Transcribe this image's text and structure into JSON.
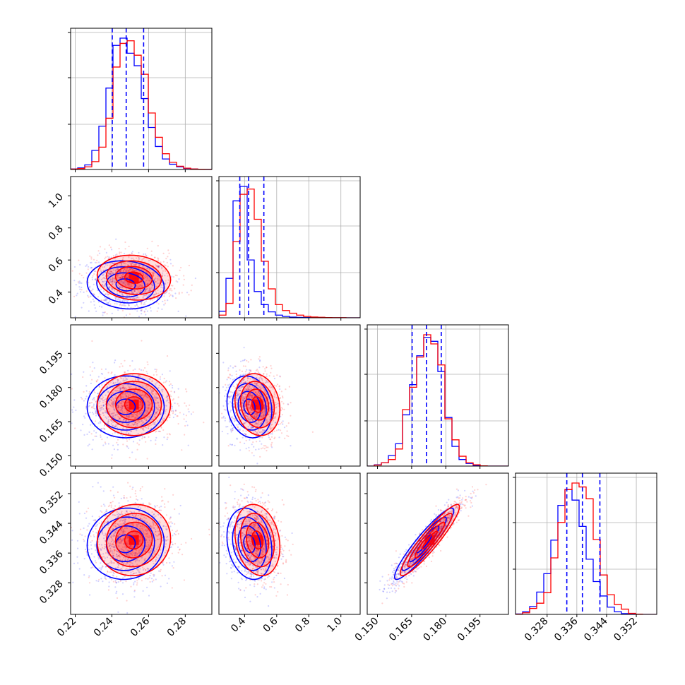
{
  "chart_data": {
    "type": "corner",
    "grid": true,
    "series": [
      {
        "color": "#0000ff"
      },
      {
        "color": "#ff0000"
      }
    ],
    "quantile_lines": {
      "color": "#0000ff",
      "style": "dashed"
    },
    "parameters": [
      {
        "range": [
          0.2175,
          0.2945
        ],
        "ticks": [
          0.22,
          0.24,
          0.26,
          0.28
        ],
        "tick_labels": [
          "0.22",
          "0.24",
          "0.26",
          "0.28"
        ],
        "quantiles": [
          0.2402,
          0.2478,
          0.2573
        ],
        "hist_blue": [
          0.004,
          0.012,
          0.035,
          0.145,
          0.33,
          0.62,
          0.945,
          1.0,
          0.885,
          0.79,
          0.54,
          0.32,
          0.175,
          0.08,
          0.04,
          0.02,
          0.008,
          0.004,
          0.002,
          0.001
        ],
        "hist_red": [
          0.003,
          0.007,
          0.02,
          0.06,
          0.17,
          0.39,
          0.78,
          0.96,
          0.98,
          0.87,
          0.725,
          0.43,
          0.245,
          0.12,
          0.055,
          0.025,
          0.01,
          0.004,
          0.002,
          0.001
        ]
      },
      {
        "range": [
          0.24,
          1.12
        ],
        "ticks": [
          0.4,
          0.6,
          0.8,
          1.0
        ],
        "tick_labels": [
          "0.4",
          "0.6",
          "0.8",
          "1.0"
        ],
        "quantiles": [
          0.37,
          0.425,
          0.52
        ],
        "hist_blue": [
          0.05,
          0.3,
          0.89,
          1.0,
          0.44,
          0.2,
          0.1,
          0.045,
          0.02,
          0.01,
          0.005,
          0.003,
          0.002,
          0.001,
          0.001,
          0.0,
          0.0,
          0.0,
          0.0,
          0.0
        ],
        "hist_red": [
          0.02,
          0.11,
          0.58,
          0.94,
          0.98,
          0.75,
          0.43,
          0.22,
          0.1,
          0.055,
          0.035,
          0.02,
          0.01,
          0.006,
          0.004,
          0.002,
          0.001,
          0.001,
          0.0,
          0.0
        ]
      },
      {
        "range": [
          0.1455,
          0.2075
        ],
        "ticks": [
          0.15,
          0.165,
          0.18,
          0.195
        ],
        "tick_labels": [
          "0.150",
          "0.165",
          "0.180",
          "0.195"
        ],
        "quantiles": [
          0.1652,
          0.1715,
          0.178
        ],
        "hist_blue": [
          0.0,
          0.01,
          0.025,
          0.08,
          0.17,
          0.39,
          0.62,
          0.84,
          0.98,
          0.95,
          0.72,
          0.37,
          0.15,
          0.05,
          0.02,
          0.006,
          0.002,
          0.0,
          0.0,
          0.0
        ],
        "hist_red": [
          0.0,
          0.008,
          0.025,
          0.05,
          0.13,
          0.43,
          0.6,
          0.83,
          1.0,
          0.93,
          0.77,
          0.36,
          0.2,
          0.075,
          0.025,
          0.01,
          0.002,
          0.0,
          0.0,
          0.0
        ]
      },
      {
        "range": [
          0.3195,
          0.3575
        ],
        "ticks": [
          0.328,
          0.336,
          0.344,
          0.352
        ],
        "tick_labels": [
          "0.328",
          "0.336",
          "0.344",
          "0.352"
        ],
        "quantiles": [
          0.3333,
          0.3375,
          0.3422
        ],
        "hist_blue": [
          0.003,
          0.02,
          0.06,
          0.17,
          0.31,
          0.565,
          0.83,
          0.95,
          0.87,
          0.67,
          0.42,
          0.25,
          0.14,
          0.055,
          0.02,
          0.006,
          0.002,
          0.0,
          0.0,
          0.0
        ],
        "hist_red": [
          0.002,
          0.012,
          0.045,
          0.085,
          0.165,
          0.43,
          0.7,
          0.95,
          1.0,
          0.97,
          0.88,
          0.57,
          0.3,
          0.15,
          0.075,
          0.04,
          0.008,
          0.002,
          0.0,
          0.0
        ]
      }
    ],
    "pairs": [
      {
        "row": 1,
        "col": 0,
        "corr": -0.1,
        "blue": {
          "mean": [
            0.2475,
            0.445
          ],
          "sd": [
            0.0105,
            0.075
          ]
        },
        "red": {
          "mean": [
            0.252,
            0.49
          ],
          "sd": [
            0.01,
            0.07
          ]
        }
      },
      {
        "row": 2,
        "col": 0,
        "corr": 0.0,
        "blue": {
          "mean": [
            0.2475,
            0.1715
          ],
          "sd": [
            0.0105,
            0.0068
          ]
        },
        "red": {
          "mean": [
            0.252,
            0.1725
          ],
          "sd": [
            0.01,
            0.0068
          ]
        }
      },
      {
        "row": 2,
        "col": 1,
        "corr": -0.15,
        "blue": {
          "mean": [
            0.43,
            0.1715
          ],
          "sd": [
            0.07,
            0.0068
          ]
        },
        "red": {
          "mean": [
            0.48,
            0.1725
          ],
          "sd": [
            0.07,
            0.0068
          ]
        }
      },
      {
        "row": 3,
        "col": 0,
        "corr": 0.05,
        "blue": {
          "mean": [
            0.2475,
            0.3385
          ],
          "sd": [
            0.0105,
            0.0048
          ]
        },
        "red": {
          "mean": [
            0.252,
            0.3395
          ],
          "sd": [
            0.01,
            0.0048
          ]
        }
      },
      {
        "row": 3,
        "col": 1,
        "corr": -0.2,
        "blue": {
          "mean": [
            0.43,
            0.3385
          ],
          "sd": [
            0.07,
            0.0048
          ]
        },
        "red": {
          "mean": [
            0.48,
            0.3395
          ],
          "sd": [
            0.07,
            0.0048
          ]
        }
      },
      {
        "row": 3,
        "col": 2,
        "corr": 0.93,
        "blue": {
          "mean": [
            0.1705,
            0.3385
          ],
          "sd": [
            0.0065,
            0.0048
          ]
        },
        "red": {
          "mean": [
            0.173,
            0.3395
          ],
          "sd": [
            0.0065,
            0.0048
          ]
        }
      }
    ]
  }
}
